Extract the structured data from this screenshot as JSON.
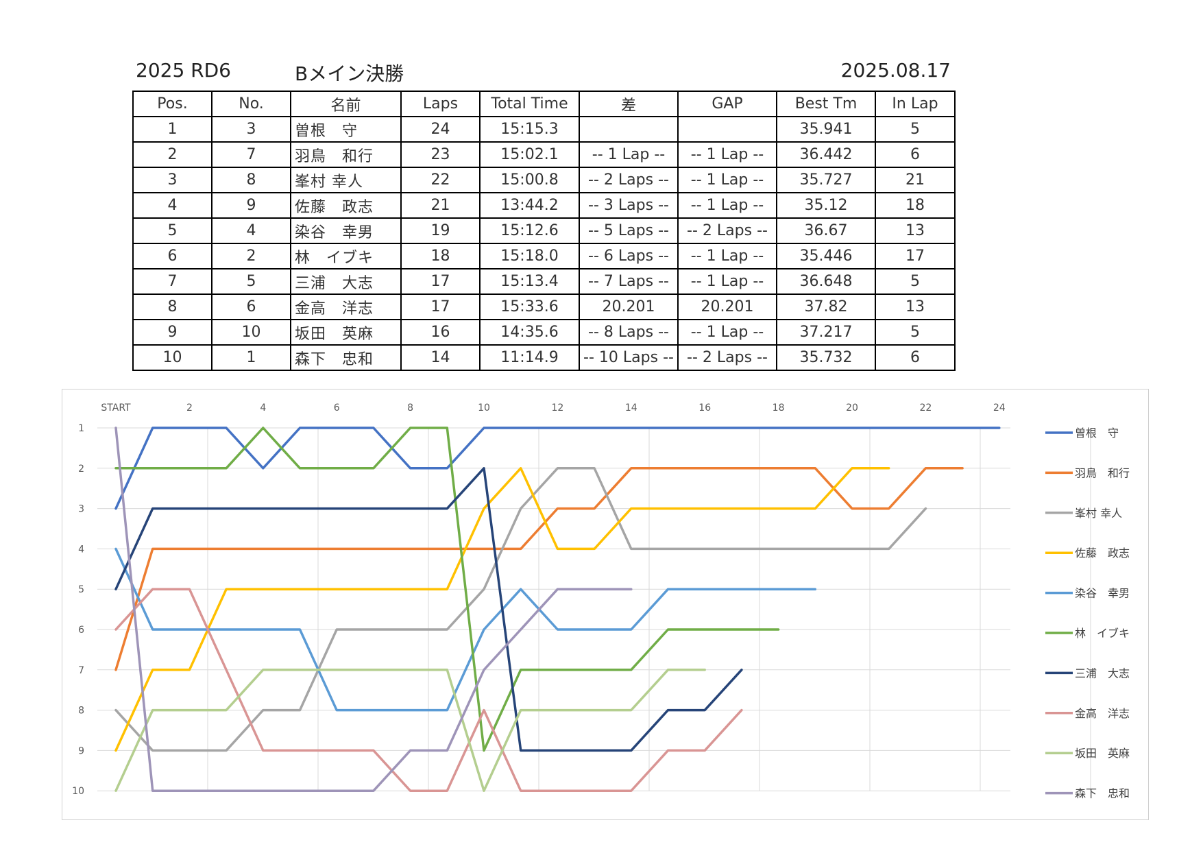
{
  "header": {
    "round": "2025 RD6",
    "event": "Bメイン決勝",
    "date": "2025.08.17"
  },
  "table": {
    "columns": [
      "Pos.",
      "No.",
      "名前",
      "Laps",
      "Total Time",
      "差",
      "GAP",
      "Best Tm",
      "In Lap"
    ],
    "rows": [
      [
        "1",
        "3",
        "曽根　守",
        "24",
        "15:15.3",
        "",
        "",
        "35.941",
        "5"
      ],
      [
        "2",
        "7",
        "羽鳥　和行",
        "23",
        "15:02.1",
        "-- 1 Lap --",
        "-- 1 Lap --",
        "36.442",
        "6"
      ],
      [
        "3",
        "8",
        "峯村 幸人",
        "22",
        "15:00.8",
        "-- 2 Laps --",
        "-- 1 Lap --",
        "35.727",
        "21"
      ],
      [
        "4",
        "9",
        "佐藤　政志",
        "21",
        "13:44.2",
        "-- 3 Laps --",
        "-- 1 Lap --",
        "35.12",
        "18"
      ],
      [
        "5",
        "4",
        "染谷　幸男",
        "19",
        "15:12.6",
        "-- 5 Laps --",
        "-- 2 Laps --",
        "36.67",
        "13"
      ],
      [
        "6",
        "2",
        "林　イブキ",
        "18",
        "15:18.0",
        "-- 6 Laps --",
        "-- 1 Lap --",
        "35.446",
        "17"
      ],
      [
        "7",
        "5",
        "三浦　大志",
        "17",
        "15:13.4",
        "-- 7 Laps --",
        "-- 1 Lap --",
        "36.648",
        "5"
      ],
      [
        "8",
        "6",
        "金高　洋志",
        "17",
        "15:33.6",
        "20.201",
        "20.201",
        "37.82",
        "13"
      ],
      [
        "9",
        "10",
        "坂田　英麻",
        "16",
        "14:35.6",
        "-- 8 Laps --",
        "-- 1 Lap --",
        "37.217",
        "5"
      ],
      [
        "10",
        "1",
        "森下　忠和",
        "14",
        "11:14.9",
        "-- 10 Laps --",
        "-- 2 Laps --",
        "35.732",
        "6"
      ]
    ]
  },
  "chart_data": {
    "type": "line",
    "title": "",
    "xlabel": "",
    "ylabel": "",
    "x_tick_labels": [
      "START",
      "2",
      "4",
      "6",
      "8",
      "10",
      "12",
      "14",
      "16",
      "18",
      "20",
      "22",
      "24"
    ],
    "xlim": [
      0,
      24
    ],
    "ylim": [
      1,
      10
    ],
    "y_inverted": true,
    "grid": true,
    "legend_position": "right",
    "series": [
      {
        "name": "曽根　守",
        "color": "#4472C4",
        "x": [
          0,
          1,
          2,
          3,
          4,
          5,
          6,
          7,
          8,
          9,
          10,
          11,
          12,
          13,
          14,
          15,
          16,
          17,
          18,
          19,
          20,
          21,
          22,
          23,
          24
        ],
        "values": [
          3,
          1,
          1,
          1,
          2,
          1,
          1,
          1,
          2,
          2,
          1,
          1,
          1,
          1,
          1,
          1,
          1,
          1,
          1,
          1,
          1,
          1,
          1,
          1,
          1
        ]
      },
      {
        "name": "羽鳥　和行",
        "color": "#ED7D31",
        "x": [
          0,
          1,
          2,
          3,
          4,
          5,
          6,
          7,
          8,
          9,
          10,
          11,
          12,
          13,
          14,
          15,
          16,
          17,
          18,
          19,
          20,
          21,
          22,
          23
        ],
        "values": [
          7,
          4,
          4,
          4,
          4,
          4,
          4,
          4,
          4,
          4,
          4,
          4,
          3,
          3,
          2,
          2,
          2,
          2,
          2,
          2,
          3,
          3,
          2,
          2
        ]
      },
      {
        "name": "峯村 幸人",
        "color": "#A5A5A5",
        "x": [
          0,
          1,
          2,
          3,
          4,
          5,
          6,
          7,
          8,
          9,
          10,
          11,
          12,
          13,
          14,
          15,
          16,
          17,
          18,
          19,
          20,
          21,
          22
        ],
        "values": [
          8,
          9,
          9,
          9,
          8,
          8,
          6,
          6,
          6,
          6,
          5,
          3,
          2,
          2,
          4,
          4,
          4,
          4,
          4,
          4,
          4,
          4,
          3
        ]
      },
      {
        "name": "佐藤　政志",
        "color": "#FFC000",
        "x": [
          0,
          1,
          2,
          3,
          4,
          5,
          6,
          7,
          8,
          9,
          10,
          11,
          12,
          13,
          14,
          15,
          16,
          17,
          18,
          19,
          20,
          21
        ],
        "values": [
          9,
          7,
          7,
          5,
          5,
          5,
          5,
          5,
          5,
          5,
          3,
          2,
          4,
          4,
          3,
          3,
          3,
          3,
          3,
          3,
          2,
          2
        ]
      },
      {
        "name": "染谷　幸男",
        "color": "#5B9BD5",
        "x": [
          0,
          1,
          2,
          3,
          4,
          5,
          6,
          7,
          8,
          9,
          10,
          11,
          12,
          13,
          14,
          15,
          16,
          17,
          18,
          19
        ],
        "values": [
          4,
          6,
          6,
          6,
          6,
          6,
          8,
          8,
          8,
          8,
          6,
          5,
          6,
          6,
          6,
          5,
          5,
          5,
          5,
          5
        ]
      },
      {
        "name": "林　イブキ",
        "color": "#70AD47",
        "x": [
          0,
          1,
          2,
          3,
          4,
          5,
          6,
          7,
          8,
          9,
          10,
          11,
          12,
          13,
          14,
          15,
          16,
          17,
          18
        ],
        "values": [
          2,
          2,
          2,
          2,
          1,
          2,
          2,
          2,
          1,
          1,
          9,
          7,
          7,
          7,
          7,
          6,
          6,
          6,
          6
        ]
      },
      {
        "name": "三浦　大志",
        "color": "#264478",
        "x": [
          0,
          1,
          2,
          3,
          4,
          5,
          6,
          7,
          8,
          9,
          10,
          11,
          12,
          13,
          14,
          15,
          16,
          17
        ],
        "values": [
          5,
          3,
          3,
          3,
          3,
          3,
          3,
          3,
          3,
          3,
          2,
          9,
          9,
          9,
          9,
          8,
          8,
          7
        ]
      },
      {
        "name": "金高　洋志",
        "color": "#D99594",
        "x": [
          0,
          1,
          2,
          3,
          4,
          5,
          6,
          7,
          8,
          9,
          10,
          11,
          12,
          13,
          14,
          15,
          16,
          17
        ],
        "values": [
          6,
          5,
          5,
          7,
          9,
          9,
          9,
          9,
          10,
          10,
          8,
          10,
          10,
          10,
          10,
          9,
          9,
          8
        ]
      },
      {
        "name": "坂田　英麻",
        "color": "#B4CE8F",
        "x": [
          0,
          1,
          2,
          3,
          4,
          5,
          6,
          7,
          8,
          9,
          10,
          11,
          12,
          13,
          14,
          15,
          16
        ],
        "values": [
          10,
          8,
          8,
          8,
          7,
          7,
          7,
          7,
          7,
          7,
          10,
          8,
          8,
          8,
          8,
          7,
          7
        ]
      },
      {
        "name": "森下　忠和",
        "color": "#9E94B8",
        "x": [
          0,
          1,
          2,
          3,
          4,
          5,
          6,
          7,
          8,
          9,
          10,
          11,
          12,
          13,
          14
        ],
        "values": [
          1,
          10,
          10,
          10,
          10,
          10,
          10,
          10,
          9,
          9,
          7,
          6,
          5,
          5,
          5
        ]
      }
    ]
  }
}
